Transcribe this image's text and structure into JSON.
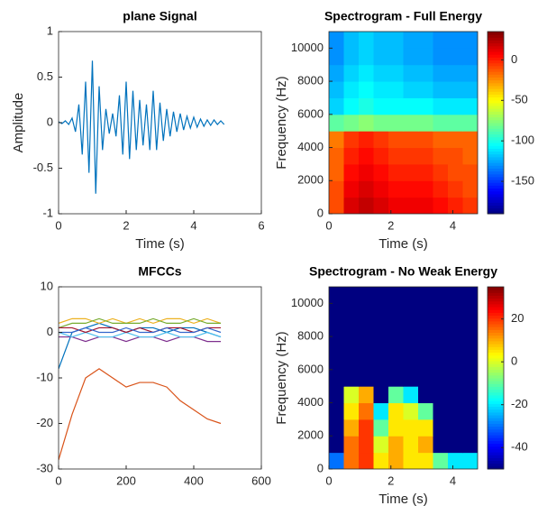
{
  "chart_data": [
    {
      "type": "line",
      "title": "plane Signal",
      "xlabel": "Time (s)",
      "ylabel": "Amplitude",
      "xlim": [
        0,
        6
      ],
      "xticks": [
        0,
        2,
        4,
        6
      ],
      "ylim": [
        -1,
        1
      ],
      "yticks": [
        -1,
        -0.5,
        0,
        0.5,
        1
      ],
      "x": [
        0,
        0.1,
        0.2,
        0.3,
        0.4,
        0.5,
        0.6,
        0.7,
        0.8,
        0.9,
        1.0,
        1.1,
        1.2,
        1.3,
        1.4,
        1.5,
        1.6,
        1.7,
        1.8,
        1.9,
        2.0,
        2.1,
        2.2,
        2.3,
        2.4,
        2.5,
        2.6,
        2.7,
        2.8,
        2.9,
        3.0,
        3.1,
        3.2,
        3.3,
        3.4,
        3.5,
        3.6,
        3.7,
        3.8,
        3.9,
        4.0,
        4.1,
        4.2,
        4.3,
        4.4,
        4.5,
        4.6,
        4.7,
        4.8,
        4.9
      ],
      "series": [
        {
          "color": "#0072bd",
          "values": [
            0.01,
            -0.01,
            0.02,
            -0.02,
            0.05,
            -0.1,
            0.2,
            -0.35,
            0.45,
            -0.55,
            0.68,
            -0.78,
            0.4,
            -0.3,
            0.15,
            -0.12,
            0.1,
            -0.15,
            0.3,
            -0.35,
            0.45,
            -0.4,
            0.35,
            -0.3,
            0.25,
            -0.25,
            0.2,
            -0.3,
            0.35,
            -0.3,
            0.22,
            -0.2,
            0.15,
            -0.15,
            0.12,
            -0.1,
            0.1,
            -0.08,
            0.07,
            -0.06,
            0.06,
            -0.05,
            0.04,
            -0.04,
            0.03,
            -0.03,
            0.03,
            -0.02,
            0.02,
            -0.02
          ]
        }
      ]
    },
    {
      "type": "heatmap",
      "title": "Spectrogram - Full Energy",
      "xlabel": "Time (s)",
      "ylabel": "Frequency (Hz)",
      "xlim": [
        0,
        4.8
      ],
      "xticks": [
        0,
        2,
        4
      ],
      "ylim": [
        0,
        11000
      ],
      "yticks": [
        0,
        2000,
        4000,
        6000,
        8000,
        10000
      ],
      "clim": [
        -190,
        35
      ],
      "cticks": [
        0,
        -50,
        -100,
        -150
      ],
      "x": [
        0.24,
        0.72,
        1.2,
        1.68,
        2.16,
        2.64,
        3.12,
        3.6,
        4.08,
        4.56
      ],
      "y": [
        500,
        1500,
        2500,
        3500,
        4500,
        5500,
        6500,
        7500,
        8500,
        9500,
        10500
      ],
      "z": [
        [
          -10,
          15,
          20,
          15,
          10,
          10,
          10,
          5,
          0,
          -5
        ],
        [
          -10,
          10,
          15,
          10,
          5,
          5,
          5,
          0,
          -5,
          -10
        ],
        [
          -15,
          5,
          10,
          5,
          0,
          0,
          0,
          -5,
          -10,
          -10
        ],
        [
          -15,
          0,
          5,
          0,
          -5,
          -5,
          -5,
          -10,
          -10,
          -15
        ],
        [
          -20,
          -5,
          0,
          -5,
          -10,
          -10,
          -10,
          -15,
          -15,
          -15
        ],
        [
          -85,
          -80,
          -75,
          -80,
          -80,
          -80,
          -80,
          -85,
          -85,
          -85
        ],
        [
          -115,
          -105,
          -100,
          -105,
          -105,
          -105,
          -105,
          -110,
          -110,
          -110
        ],
        [
          -120,
          -110,
          -105,
          -110,
          -110,
          -115,
          -115,
          -120,
          -120,
          -120
        ],
        [
          -125,
          -115,
          -110,
          -115,
          -115,
          -120,
          -120,
          -125,
          -125,
          -125
        ],
        [
          -130,
          -120,
          -115,
          -120,
          -120,
          -125,
          -125,
          -130,
          -130,
          -130
        ],
        [
          -130,
          -120,
          -115,
          -120,
          -120,
          -125,
          -125,
          -130,
          -130,
          -130
        ]
      ]
    },
    {
      "type": "line",
      "title": "MFCCs",
      "xlim": [
        0,
        600
      ],
      "xticks": [
        0,
        200,
        400,
        600
      ],
      "ylim": [
        -30,
        10
      ],
      "yticks": [
        -30,
        -20,
        -10,
        0,
        10
      ],
      "x": [
        0,
        40,
        80,
        120,
        160,
        200,
        240,
        280,
        320,
        360,
        400,
        440,
        480
      ],
      "series": [
        {
          "color": "#0072bd",
          "values": [
            -8,
            0,
            1,
            2,
            1,
            0,
            1,
            1,
            0,
            1,
            1,
            0,
            -1
          ]
        },
        {
          "color": "#d95319",
          "values": [
            -28,
            -18,
            -10,
            -8,
            -10,
            -12,
            -11,
            -11,
            -12,
            -15,
            -17,
            -19,
            -20
          ]
        },
        {
          "color": "#edb120",
          "values": [
            2,
            3,
            3,
            2,
            3,
            2,
            3,
            2,
            3,
            3,
            2,
            3,
            2
          ]
        },
        {
          "color": "#7e2f8e",
          "values": [
            -1,
            -1,
            -2,
            -1,
            -1,
            -2,
            -1,
            -1,
            -2,
            -1,
            -1,
            -2,
            -2
          ]
        },
        {
          "color": "#77ac30",
          "values": [
            1,
            2,
            2,
            3,
            2,
            2,
            2,
            3,
            2,
            2,
            3,
            2,
            2
          ]
        },
        {
          "color": "#4dbeee",
          "values": [
            0,
            -1,
            0,
            -1,
            -1,
            0,
            -1,
            -1,
            0,
            -1,
            -1,
            0,
            -1
          ]
        },
        {
          "color": "#a2142f",
          "values": [
            1,
            1,
            0,
            1,
            1,
            0,
            1,
            0,
            1,
            1,
            0,
            1,
            1
          ]
        },
        {
          "color": "#3366cc",
          "values": [
            0,
            0,
            1,
            0,
            0,
            1,
            0,
            0,
            1,
            0,
            0,
            1,
            0
          ]
        }
      ]
    },
    {
      "type": "heatmap",
      "title": "Spectrogram - No Weak Energy",
      "xlabel": "Time (s)",
      "ylabel": "Frequency (Hz)",
      "xlim": [
        0,
        4.8
      ],
      "xticks": [
        0,
        2,
        4
      ],
      "ylim": [
        0,
        11000
      ],
      "yticks": [
        0,
        2000,
        4000,
        6000,
        8000,
        10000
      ],
      "clim": [
        -50,
        35
      ],
      "cticks": [
        20,
        0,
        -20,
        -40
      ],
      "x": [
        0.24,
        0.72,
        1.2,
        1.68,
        2.16,
        2.64,
        3.12,
        3.6,
        4.08,
        4.56
      ],
      "y": [
        500,
        1500,
        2500,
        3500,
        4500,
        5500,
        6500,
        7500,
        8500,
        9500,
        10500
      ],
      "z": [
        [
          -30,
          15,
          20,
          5,
          10,
          5,
          5,
          -10,
          -20,
          -20
        ],
        [
          -50,
          15,
          20,
          0,
          10,
          5,
          10,
          -50,
          -50,
          -50
        ],
        [
          -50,
          10,
          20,
          -10,
          5,
          5,
          5,
          -50,
          -50,
          -50
        ],
        [
          -50,
          5,
          15,
          -20,
          5,
          0,
          -10,
          -50,
          -50,
          -50
        ],
        [
          -50,
          0,
          10,
          -50,
          -10,
          -20,
          -50,
          -50,
          -50,
          -50
        ],
        [
          -50,
          -50,
          -50,
          -50,
          -50,
          -50,
          -50,
          -50,
          -50,
          -50
        ],
        [
          -50,
          -50,
          -50,
          -50,
          -50,
          -50,
          -50,
          -50,
          -50,
          -50
        ],
        [
          -50,
          -50,
          -50,
          -50,
          -50,
          -50,
          -50,
          -50,
          -50,
          -50
        ],
        [
          -50,
          -50,
          -50,
          -50,
          -50,
          -50,
          -50,
          -50,
          -50,
          -50
        ],
        [
          -50,
          -50,
          -50,
          -50,
          -50,
          -50,
          -50,
          -50,
          -50,
          -50
        ],
        [
          -50,
          -50,
          -50,
          -50,
          -50,
          -50,
          -50,
          -50,
          -50,
          -50
        ]
      ]
    }
  ]
}
